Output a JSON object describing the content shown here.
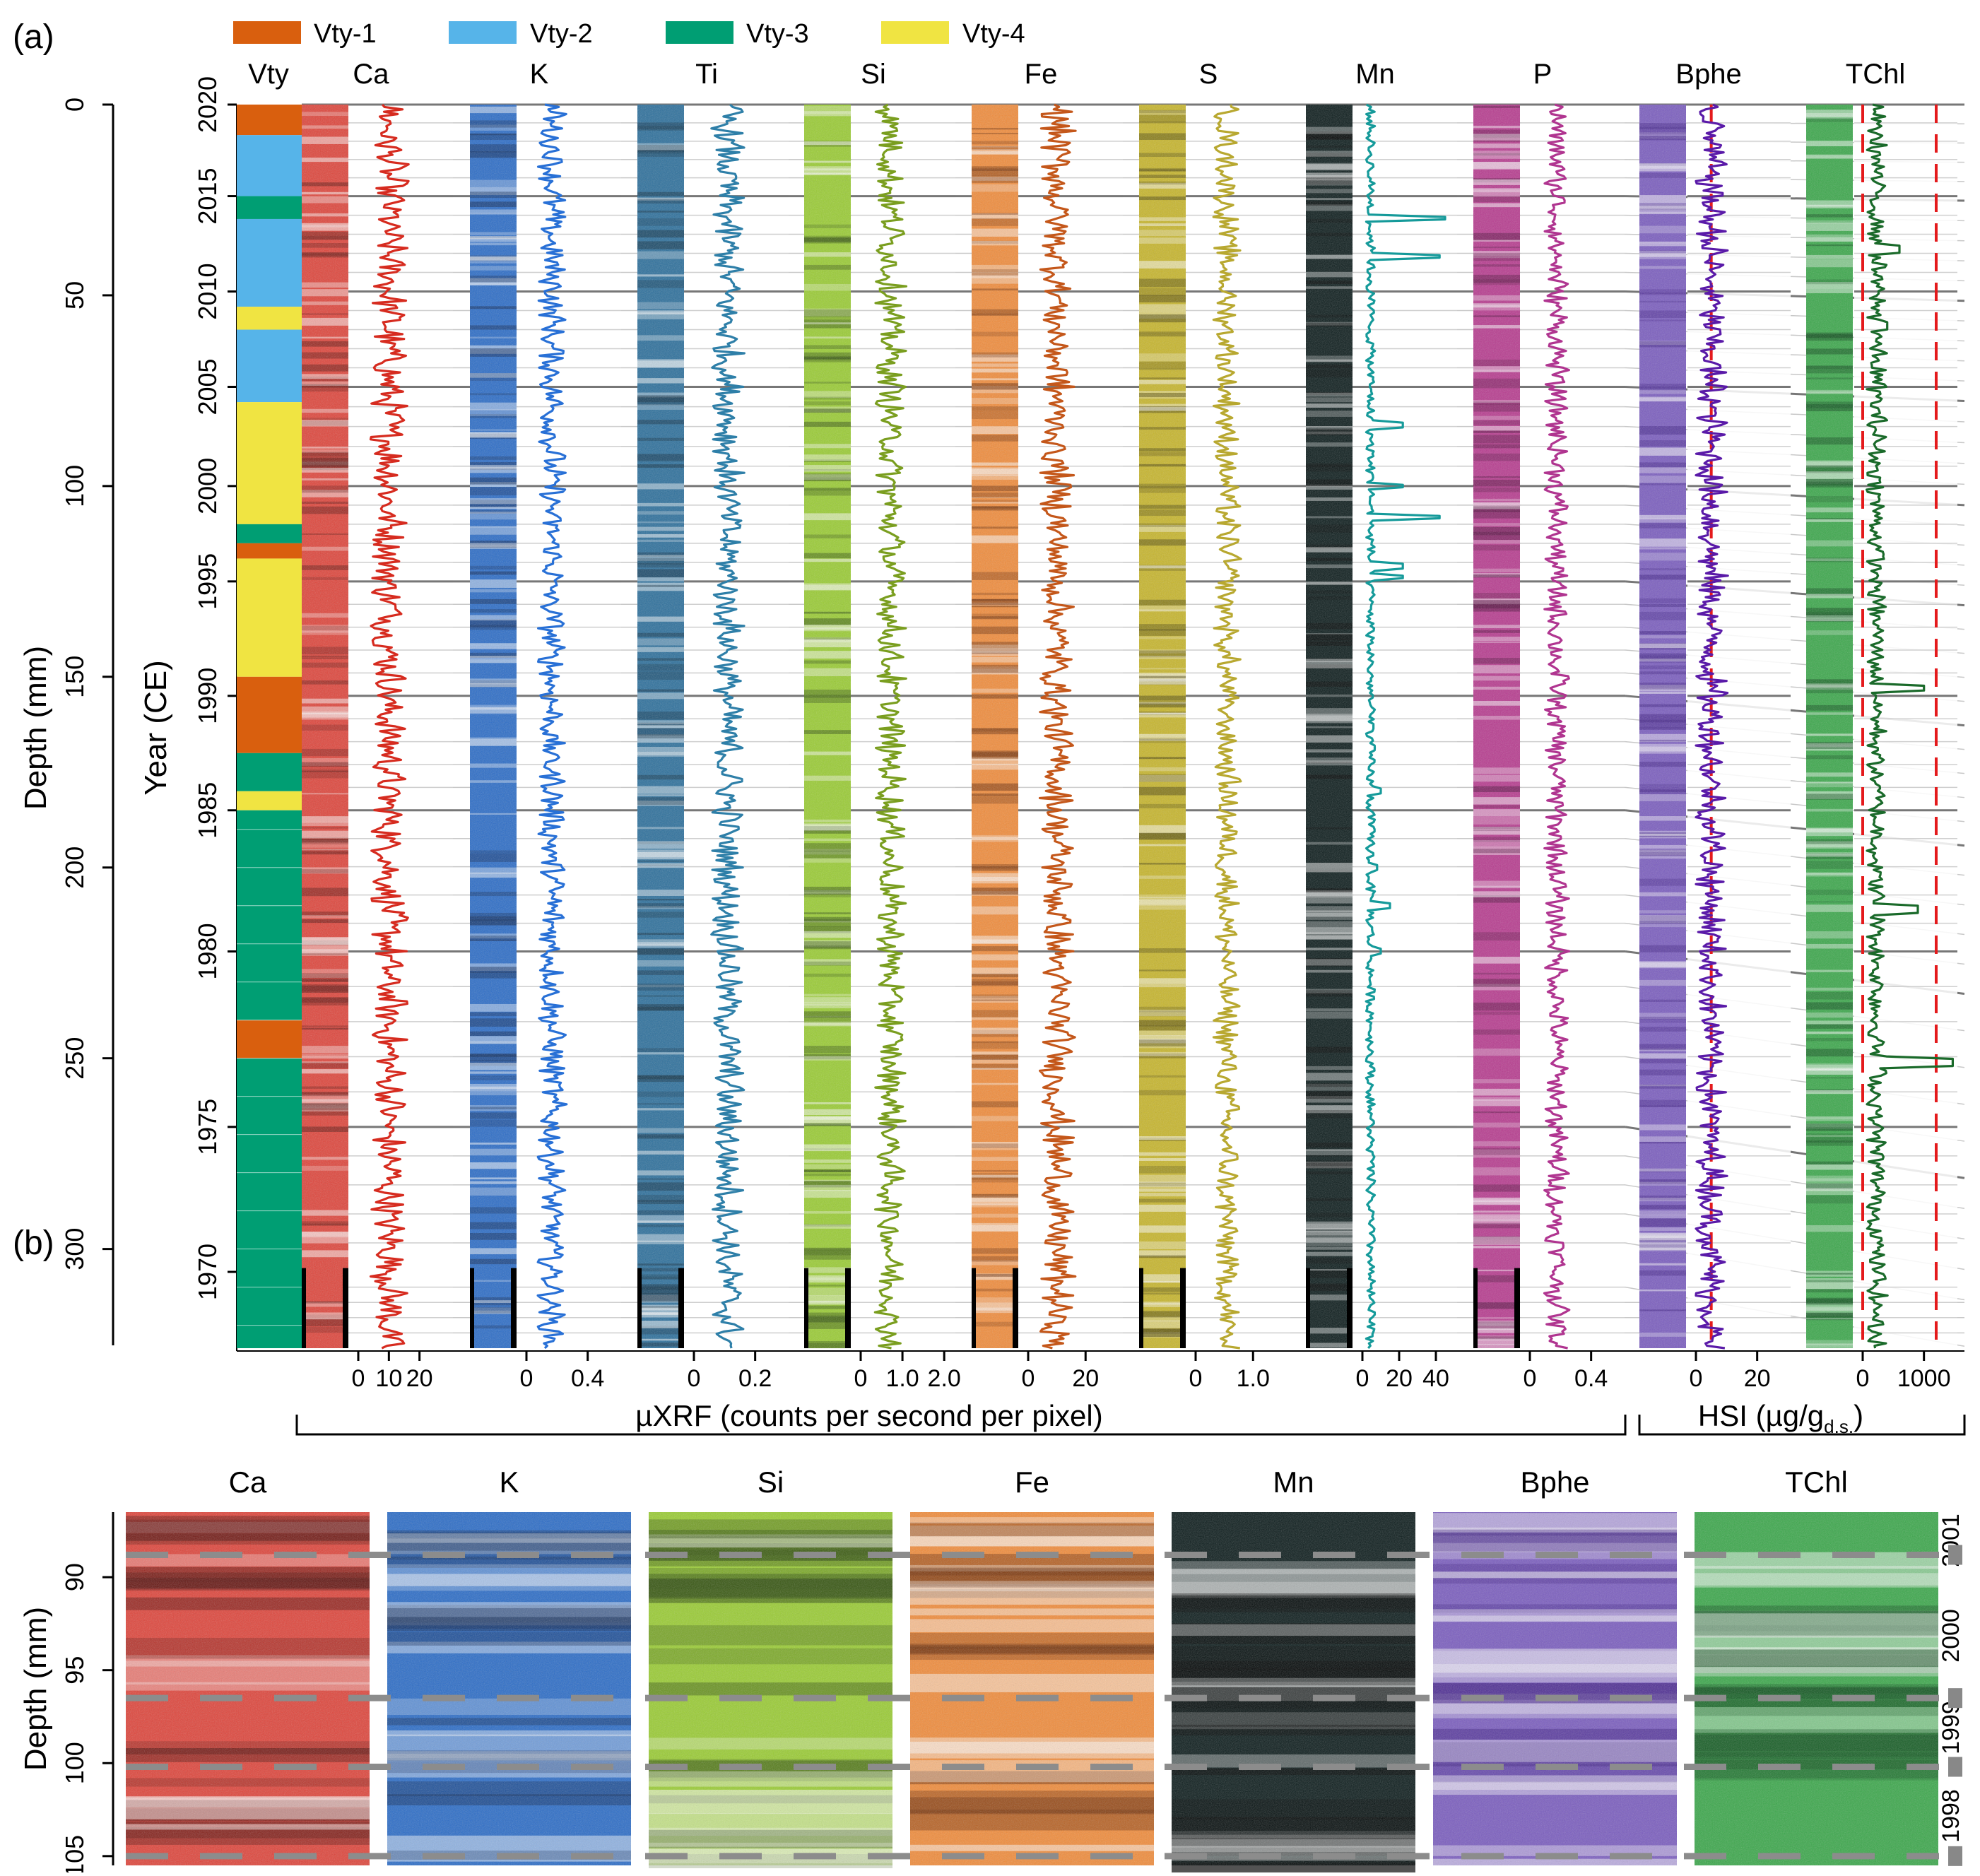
{
  "panel_labels": {
    "a": "(a)",
    "b": "(b)"
  },
  "legend": [
    {
      "label": "Vty-1",
      "color": "#d95f0e"
    },
    {
      "label": "Vty-2",
      "color": "#56b4e9"
    },
    {
      "label": "Vty-3",
      "color": "#009e73"
    },
    {
      "label": "Vty-4",
      "color": "#f0e442"
    }
  ],
  "vty_header": "Vty",
  "depth_axis": {
    "label": "Depth (mm)",
    "ticks": [
      "0",
      "50",
      "100",
      "150",
      "200",
      "250",
      "300"
    ]
  },
  "year_axis": {
    "label": "Year (CE)",
    "ticks": [
      "2020",
      "2015",
      "2010",
      "2005",
      "2000",
      "1995",
      "1990",
      "1985",
      "1980",
      "1975",
      "1970"
    ]
  },
  "columns": [
    {
      "name": "Ca",
      "img": "#e0443a",
      "img_dark": "#5a120e",
      "line": "#d62b1f",
      "max": 30,
      "ticks": [
        "0",
        "10",
        "20"
      ],
      "tick_vals": [
        0,
        10,
        20
      ]
    },
    {
      "name": "K",
      "img": "#2a6cc8",
      "img_dark": "#0c2450",
      "line": "#2870d6",
      "max": 0.6,
      "ticks": [
        "0",
        "0.4"
      ],
      "tick_vals": [
        0,
        0.4
      ]
    },
    {
      "name": "Ti",
      "img": "#2b6f9c",
      "img_dark": "#0d2a3e",
      "line": "#2e7fa8",
      "max": 0.3,
      "ticks": [
        "0",
        "0.2"
      ],
      "tick_vals": [
        0,
        0.2
      ]
    },
    {
      "name": "Si",
      "img": "#9acd32",
      "img_dark": "#2c4a0c",
      "line": "#7a9e1f",
      "max": 2.2,
      "ticks": [
        "0",
        "1.0",
        "2.0"
      ],
      "tick_vals": [
        0,
        1.0,
        2.0
      ]
    },
    {
      "name": "Fe",
      "img": "#f28c3a",
      "img_dark": "#6a2c08",
      "line": "#c4571a",
      "max": 32,
      "ticks": [
        "0",
        "20"
      ],
      "tick_vals": [
        0,
        20
      ]
    },
    {
      "name": "S",
      "img": "#c8b62a",
      "img_dark": "#4a420a",
      "line": "#b8a830",
      "max": 1.6,
      "ticks": [
        "0",
        "1.0"
      ],
      "tick_vals": [
        0,
        1.0
      ]
    },
    {
      "name": "Mn",
      "img": "#0a1a1a",
      "img_dark": "#000000",
      "line": "#159a9a",
      "max": 50,
      "ticks": [
        "0",
        "20",
        "40"
      ],
      "tick_vals": [
        0,
        20,
        40
      ]
    },
    {
      "name": "P",
      "img": "#b83a8f",
      "img_dark": "#4a0c38",
      "line": "#b03590",
      "max": 0.6,
      "ticks": [
        "0",
        "0.4"
      ],
      "tick_vals": [
        0,
        0.4
      ]
    },
    {
      "name": "Bphe",
      "img": "#7a5cc0",
      "img_dark": "#3a1a80",
      "line": "#5a1aa8",
      "max": 30,
      "ticks": [
        "0",
        "20"
      ],
      "tick_vals": [
        0,
        20
      ]
    },
    {
      "name": "TChl",
      "img": "#3aa84a",
      "img_dark": "#0c4a1a",
      "line": "#1a6a2a",
      "max": 1500,
      "ticks": [
        "0",
        "1000"
      ],
      "tick_vals": [
        0,
        1000
      ]
    }
  ],
  "xrf_label": "µXRF (counts per second per pixel)",
  "hsi_label_main": "HSI (µg/g",
  "hsi_label_sub": "d.s.",
  "hsi_label_end": ")",
  "panel_b": {
    "images": [
      "Ca",
      "K",
      "Si",
      "Fe",
      "Mn",
      "Bphe",
      "TChl"
    ],
    "depth_label": "Depth (mm)",
    "depth_ticks": [
      "90",
      "95",
      "100",
      "105"
    ],
    "years": [
      "2001",
      "2000",
      "1999",
      "1998"
    ]
  },
  "chart_data": {
    "type": "line",
    "title": "",
    "xlabel": "µXRF (counts per second per pixel) / HSI (µg/g d.s.)",
    "ylabel": "Depth (mm)",
    "ylim": [
      0,
      326
    ],
    "year_depth_map": [
      [
        2020,
        0
      ],
      [
        2015,
        24
      ],
      [
        2010,
        49
      ],
      [
        2005,
        74
      ],
      [
        2000,
        100
      ],
      [
        1995,
        125
      ],
      [
        1990,
        155
      ],
      [
        1985,
        185
      ],
      [
        1980,
        222
      ],
      [
        1975,
        268
      ],
      [
        1970,
        306
      ]
    ],
    "vty_segments": [
      {
        "from": 0,
        "to": 8,
        "class": "Vty-1"
      },
      {
        "from": 8,
        "to": 24,
        "class": "Vty-2"
      },
      {
        "from": 24,
        "to": 30,
        "class": "Vty-3"
      },
      {
        "from": 30,
        "to": 53,
        "class": "Vty-2"
      },
      {
        "from": 53,
        "to": 59,
        "class": "Vty-4"
      },
      {
        "from": 59,
        "to": 78,
        "class": "Vty-2"
      },
      {
        "from": 78,
        "to": 110,
        "class": "Vty-4"
      },
      {
        "from": 110,
        "to": 115,
        "class": "Vty-3"
      },
      {
        "from": 115,
        "to": 119,
        "class": "Vty-1"
      },
      {
        "from": 119,
        "to": 150,
        "class": "Vty-4"
      },
      {
        "from": 150,
        "to": 170,
        "class": "Vty-1"
      },
      {
        "from": 170,
        "to": 180,
        "class": "Vty-3"
      },
      {
        "from": 180,
        "to": 185,
        "class": "Vty-4"
      },
      {
        "from": 185,
        "to": 240,
        "class": "Vty-3"
      },
      {
        "from": 240,
        "to": 250,
        "class": "Vty-1"
      },
      {
        "from": 250,
        "to": 326,
        "class": "Vty-3"
      }
    ],
    "series": [
      {
        "name": "Ca",
        "baseline": 9,
        "amplitude": 9,
        "xlim": [
          0,
          30
        ]
      },
      {
        "name": "K",
        "baseline": 0.15,
        "amplitude": 0.14,
        "xlim": [
          0,
          0.6
        ]
      },
      {
        "name": "Ti",
        "baseline": 0.1,
        "amplitude": 0.08,
        "xlim": [
          0,
          0.3
        ]
      },
      {
        "name": "Si",
        "baseline": 0.65,
        "amplitude": 0.55,
        "xlim": [
          0,
          2.2
        ]
      },
      {
        "name": "Fe",
        "baseline": 9,
        "amplitude": 9,
        "xlim": [
          0,
          32
        ]
      },
      {
        "name": "S",
        "baseline": 0.5,
        "amplitude": 0.35,
        "xlim": [
          0,
          1.6
        ]
      },
      {
        "name": "Mn",
        "baseline": 2,
        "amplitude": 6,
        "xlim": [
          0,
          50
        ]
      },
      {
        "name": "P",
        "baseline": 0.16,
        "amplitude": 0.12,
        "xlim": [
          0,
          0.6
        ]
      },
      {
        "name": "Bphe",
        "baseline": 4,
        "amplitude": 8,
        "xlim": [
          0,
          30
        ]
      },
      {
        "name": "TChl",
        "baseline": 200,
        "amplitude": 250,
        "xlim": [
          0,
          1500
        ]
      }
    ],
    "reference_lines": [
      {
        "series": "Bphe",
        "x": 5
      },
      {
        "series": "TChl",
        "x": 0
      },
      {
        "series": "TChl",
        "x": 1200
      }
    ],
    "mn_peaks": [
      [
        30,
        45
      ],
      [
        40,
        42
      ],
      [
        84,
        22
      ],
      [
        100,
        22
      ],
      [
        108,
        42
      ],
      [
        121,
        22
      ],
      [
        124,
        22
      ],
      [
        163,
        6
      ],
      [
        180,
        10
      ],
      [
        200,
        8
      ],
      [
        210,
        15
      ],
      [
        222,
        10
      ]
    ],
    "tchl_peaks": [
      [
        153,
        1000
      ],
      [
        211,
        900
      ],
      [
        251,
        1500
      ],
      [
        38,
        600
      ],
      [
        58,
        400
      ]
    ]
  }
}
